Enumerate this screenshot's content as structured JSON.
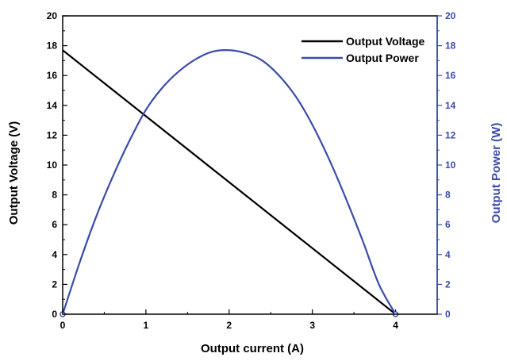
{
  "chart_data": {
    "type": "line",
    "xlabel": "Output current (A)",
    "ylabel_left": "Output Voltage (V)",
    "ylabel_right": "Output Power (W)",
    "xlim": [
      0,
      4.5
    ],
    "ylim_left": [
      0,
      20
    ],
    "ylim_right": [
      0,
      20
    ],
    "x_ticks": [
      "0",
      "1",
      "2",
      "3",
      "4"
    ],
    "y_ticks_left": [
      "0",
      "2",
      "4",
      "6",
      "8",
      "10",
      "12",
      "14",
      "16",
      "18",
      "20"
    ],
    "y_ticks_right": [
      "0",
      "2",
      "4",
      "6",
      "8",
      "10",
      "12",
      "14",
      "16",
      "18",
      "20"
    ],
    "grid": false,
    "legend_position": "top-right",
    "series": [
      {
        "name": "Output Voltage",
        "axis": "left",
        "color": "#000000",
        "x": [
          0,
          4
        ],
        "y": [
          17.7,
          0
        ]
      },
      {
        "name": "Output Power",
        "axis": "right",
        "color": "#3b4ba8",
        "x": [
          0,
          0.2,
          0.4,
          0.6,
          0.8,
          1.0,
          1.2,
          1.4,
          1.6,
          1.8,
          2.0,
          2.2,
          2.4,
          2.6,
          2.8,
          3.0,
          3.2,
          3.4,
          3.6,
          3.8,
          4.0
        ],
        "y": [
          0,
          3.4,
          6.5,
          9.2,
          11.6,
          13.7,
          15.2,
          16.3,
          17.1,
          17.6,
          17.7,
          17.5,
          17.0,
          16.0,
          14.6,
          12.7,
          10.4,
          7.8,
          5.0,
          2.0,
          0
        ]
      }
    ]
  }
}
